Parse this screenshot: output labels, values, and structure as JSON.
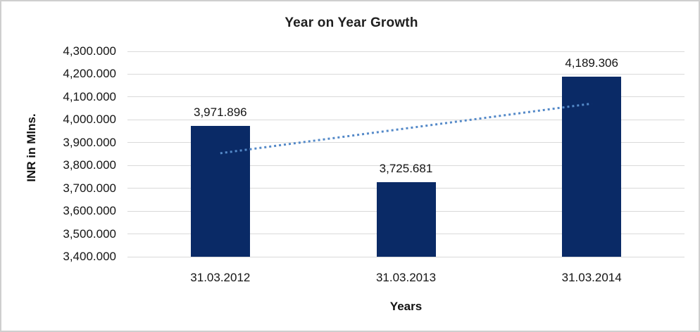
{
  "chart_data": {
    "type": "bar",
    "title": "Year on Year Growth",
    "xlabel": "Years",
    "ylabel": "INR in Mlns.",
    "categories": [
      "31.03.2012",
      "31.03.2013",
      "31.03.2014"
    ],
    "values": [
      3971.896,
      3725.681,
      4189.306
    ],
    "data_labels": [
      "3,971.896",
      "3,725.681",
      "4,189.306"
    ],
    "ylim": [
      3400,
      4300
    ],
    "ytick_step": 100,
    "ytick_format": "#,##0.000",
    "grid": true,
    "legend": "none",
    "bar_color": "#0a2a66",
    "gridline_color": "#d9d9d9",
    "text_color": "#141414",
    "frame_color": "#cfcfcf",
    "trendline": {
      "style": "dotted",
      "color": "#5489c8",
      "start_value": 3853.6,
      "end_value": 4071.0
    }
  }
}
